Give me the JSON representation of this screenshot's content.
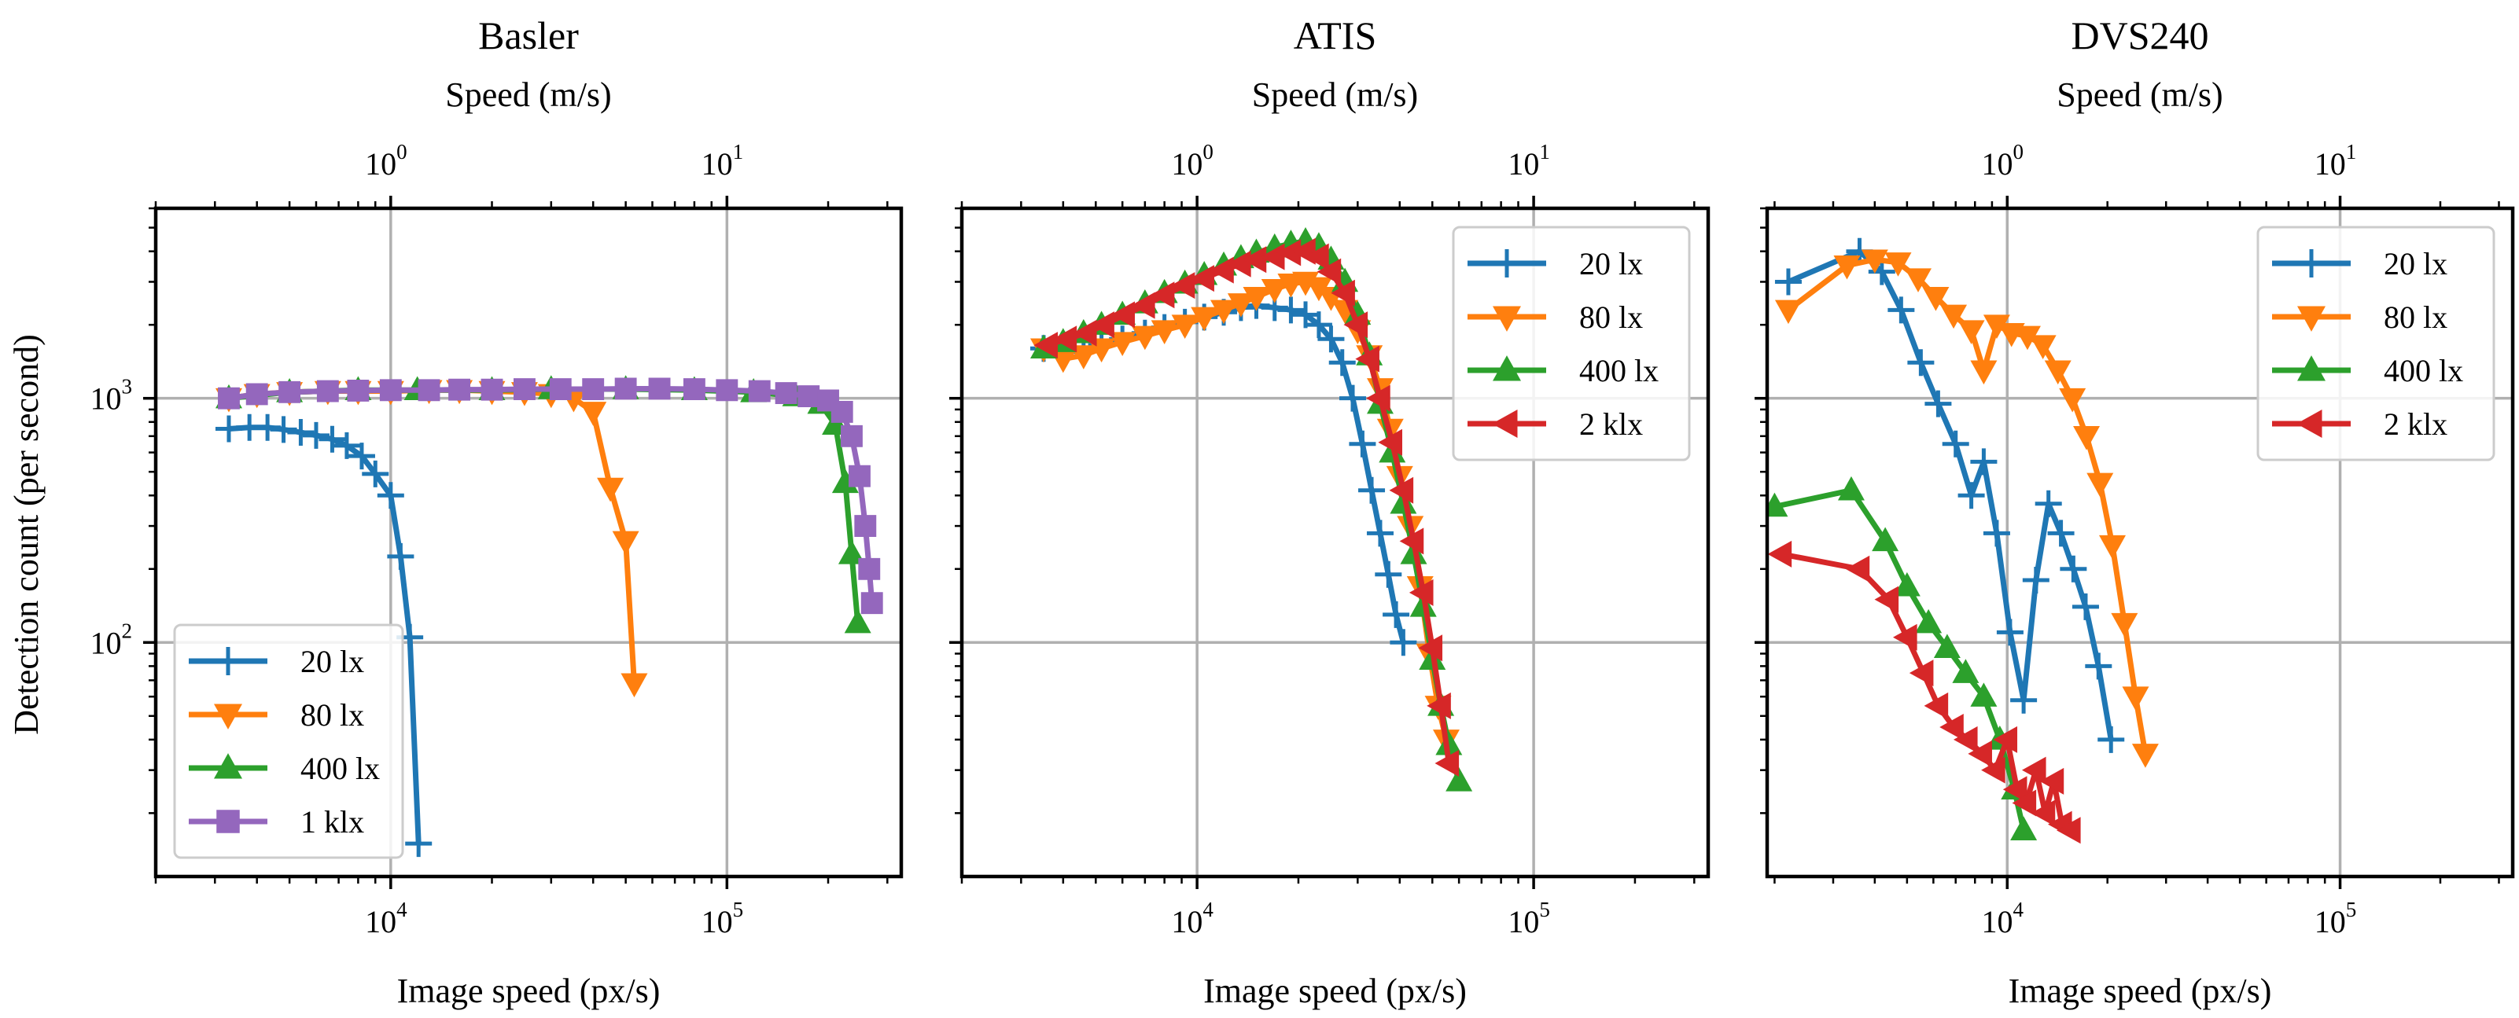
{
  "figure": {
    "ylabel": "Detection count (per second)"
  },
  "chart_data": [
    {
      "type": "line",
      "title": "Basler",
      "xlabel": "Image speed (px/s)",
      "x2label": "Speed (m/s)",
      "ylabel": "Detection count (per second)",
      "xscale": "log",
      "yscale": "log",
      "xlim": [
        2000,
        330000
      ],
      "ylim": [
        11,
        6000
      ],
      "x_ticks": [
        {
          "base": "10",
          "exp": "4",
          "value": 10000
        },
        {
          "base": "10",
          "exp": "5",
          "value": 100000
        }
      ],
      "y_ticks": [
        {
          "base": "10",
          "exp": "3",
          "value": 1000
        },
        {
          "base": "10",
          "exp": "2",
          "value": 100
        }
      ],
      "x2_ticks": [
        {
          "base": "10",
          "exp": "0",
          "value": 1
        },
        {
          "base": "10",
          "exp": "1",
          "value": 10
        }
      ],
      "grid": true,
      "legend_position": "lower-left",
      "series": [
        {
          "name": "20 lx",
          "color": "#1f77b4",
          "marker": "plus",
          "x": [
            3300,
            3800,
            4300,
            4800,
            5400,
            6000,
            6700,
            7400,
            8200,
            9000,
            10000,
            10700,
            11400,
            12100
          ],
          "y": [
            750,
            760,
            760,
            745,
            725,
            705,
            680,
            640,
            580,
            490,
            400,
            225,
            105,
            15
          ]
        },
        {
          "name": "80 lx",
          "color": "#ff7f0e",
          "marker": "triangle-down",
          "x": [
            3300,
            4000,
            5000,
            6500,
            8000,
            10000,
            13000,
            16000,
            20000,
            25000,
            30000,
            35000,
            40000,
            45000,
            50000,
            53000
          ],
          "y": [
            1000,
            1040,
            1060,
            1070,
            1070,
            1070,
            1080,
            1080,
            1070,
            1060,
            1040,
            1000,
            880,
            430,
            260,
            68
          ]
        },
        {
          "name": "400 lx",
          "color": "#2ca02c",
          "marker": "triangle-up",
          "x": [
            3300,
            5000,
            8000,
            12000,
            20000,
            30000,
            50000,
            80000,
            120000,
            160000,
            190000,
            210000,
            225000,
            235000,
            245000
          ],
          "y": [
            1000,
            1060,
            1080,
            1080,
            1080,
            1090,
            1090,
            1080,
            1060,
            1020,
            950,
            780,
            450,
            230,
            120
          ]
        },
        {
          "name": "1 klx",
          "color": "#9467bd",
          "marker": "square",
          "x": [
            3300,
            4000,
            5000,
            6500,
            8000,
            10000,
            13000,
            16000,
            20000,
            25000,
            32000,
            40000,
            50000,
            63000,
            80000,
            100000,
            125000,
            150000,
            175000,
            200000,
            220000,
            235000,
            248000,
            258000,
            265000,
            270000
          ],
          "y": [
            1000,
            1040,
            1060,
            1070,
            1075,
            1080,
            1080,
            1085,
            1085,
            1090,
            1090,
            1090,
            1095,
            1095,
            1090,
            1080,
            1070,
            1050,
            1020,
            980,
            880,
            700,
            480,
            300,
            200,
            145
          ]
        }
      ]
    },
    {
      "type": "line",
      "title": "ATIS",
      "xlabel": "Image speed (px/s)",
      "x2label": "Speed (m/s)",
      "xscale": "log",
      "yscale": "log",
      "xlim": [
        2000,
        330000
      ],
      "ylim": [
        11,
        6000
      ],
      "x_ticks": [
        {
          "base": "10",
          "exp": "4",
          "value": 10000
        },
        {
          "base": "10",
          "exp": "5",
          "value": 100000
        }
      ],
      "y_ticks": [
        {
          "base": "10",
          "exp": "3",
          "value": 1000
        },
        {
          "base": "10",
          "exp": "2",
          "value": 100
        }
      ],
      "x2_ticks": [
        {
          "base": "10",
          "exp": "0",
          "value": 1
        },
        {
          "base": "10",
          "exp": "1",
          "value": 10
        }
      ],
      "grid": true,
      "legend_position": "upper-right",
      "series": [
        {
          "name": "20 lx",
          "color": "#1f77b4",
          "marker": "plus",
          "x": [
            3500,
            4000,
            4600,
            5200,
            6000,
            7000,
            8000,
            9200,
            10500,
            12000,
            13500,
            15000,
            17000,
            19000,
            21000,
            23000,
            25000,
            27000,
            29000,
            31000,
            33000,
            35000,
            37000,
            39000,
            41000
          ],
          "y": [
            1600,
            1550,
            1580,
            1650,
            1750,
            1850,
            1950,
            2050,
            2150,
            2250,
            2350,
            2400,
            2350,
            2300,
            2200,
            2000,
            1750,
            1400,
            1000,
            650,
            420,
            280,
            190,
            130,
            100
          ]
        },
        {
          "name": "80 lx",
          "color": "#ff7f0e",
          "marker": "triangle-down",
          "x": [
            3500,
            4000,
            4600,
            5200,
            6000,
            7000,
            8000,
            9200,
            10500,
            12000,
            13500,
            15000,
            17000,
            19000,
            21000,
            23000,
            25000,
            27500,
            30000,
            32500,
            35000,
            37500,
            40000,
            43000,
            46000,
            49000,
            52000,
            55000
          ],
          "y": [
            1600,
            1450,
            1500,
            1600,
            1700,
            1800,
            1900,
            2000,
            2150,
            2300,
            2450,
            2600,
            2800,
            2950,
            3000,
            2850,
            2600,
            2300,
            1900,
            1500,
            1100,
            750,
            480,
            300,
            170,
            90,
            55,
            40
          ]
        },
        {
          "name": "400 lx",
          "color": "#2ca02c",
          "marker": "triangle-up",
          "x": [
            3500,
            4000,
            4600,
            5200,
            6000,
            7000,
            8000,
            9200,
            10500,
            12000,
            13500,
            15000,
            17000,
            19000,
            21000,
            23000,
            25000,
            27500,
            30000,
            32500,
            35000,
            38000,
            41000,
            44000,
            47000,
            50000,
            53000,
            56000,
            60000
          ],
          "y": [
            1600,
            1700,
            1850,
            2000,
            2200,
            2450,
            2700,
            2950,
            3200,
            3500,
            3750,
            3950,
            4150,
            4300,
            4400,
            4200,
            3700,
            3000,
            2200,
            1500,
            950,
            600,
            370,
            230,
            140,
            85,
            55,
            38,
            27
          ]
        },
        {
          "name": "2 klx",
          "color": "#d62728",
          "marker": "triangle-left",
          "x": [
            3600,
            4100,
            4700,
            5300,
            6100,
            7000,
            8000,
            9200,
            10500,
            12000,
            13500,
            15000,
            17000,
            19000,
            21000,
            23000,
            25000,
            27500,
            30000,
            32500,
            35000,
            38000,
            41000,
            44000,
            47000,
            50000,
            53000,
            56000
          ],
          "y": [
            1650,
            1750,
            1850,
            2000,
            2200,
            2400,
            2650,
            2900,
            3100,
            3350,
            3550,
            3700,
            3800,
            3950,
            4000,
            3800,
            3300,
            2700,
            2000,
            1450,
            1000,
            660,
            420,
            260,
            160,
            95,
            55,
            32
          ]
        }
      ]
    },
    {
      "type": "line",
      "title": "DVS240",
      "xlabel": "Image speed (px/s)",
      "x2label": "Speed (m/s)",
      "xscale": "log",
      "yscale": "log",
      "xlim": [
        1900,
        330000
      ],
      "ylim": [
        11,
        6000
      ],
      "x_ticks": [
        {
          "base": "10",
          "exp": "4",
          "value": 10000
        },
        {
          "base": "10",
          "exp": "5",
          "value": 100000
        }
      ],
      "y_ticks": [
        {
          "base": "10",
          "exp": "3",
          "value": 1000
        },
        {
          "base": "10",
          "exp": "2",
          "value": 100
        }
      ],
      "x2_ticks": [
        {
          "base": "10",
          "exp": "0",
          "value": 1
        },
        {
          "base": "10",
          "exp": "1",
          "value": 10
        }
      ],
      "grid": true,
      "legend_position": "upper-right",
      "series": [
        {
          "name": "20 lx",
          "color": "#1f77b4",
          "marker": "plus",
          "x": [
            2200,
            3600,
            4200,
            4800,
            5500,
            6200,
            7000,
            7800,
            8500,
            9300,
            10200,
            11200,
            12200,
            13300,
            14500,
            15800,
            17200,
            18800,
            20500
          ],
          "y": [
            3000,
            4000,
            3300,
            2300,
            1400,
            950,
            650,
            400,
            550,
            280,
            110,
            58,
            180,
            370,
            280,
            200,
            140,
            80,
            40
          ]
        },
        {
          "name": "80 lx",
          "color": "#ff7f0e",
          "marker": "triangle-down",
          "x": [
            2200,
            3300,
            4000,
            4700,
            5400,
            6100,
            6900,
            7800,
            8500,
            9300,
            10300,
            11500,
            12800,
            14200,
            15700,
            17300,
            19000,
            20700,
            22500,
            24300,
            26000
          ],
          "y": [
            2300,
            3500,
            3700,
            3600,
            3100,
            2600,
            2200,
            1900,
            1300,
            2000,
            1850,
            1800,
            1650,
            1300,
            1000,
            700,
            450,
            250,
            120,
            60,
            35
          ]
        },
        {
          "name": "400 lx",
          "color": "#2ca02c",
          "marker": "triangle-up",
          "x": [
            2000,
            3400,
            4300,
            5000,
            5800,
            6600,
            7500,
            8500,
            9500,
            10500,
            11200
          ],
          "y": [
            360,
            420,
            260,
            170,
            120,
            95,
            75,
            60,
            40,
            25,
            17
          ]
        },
        {
          "name": "2 klx",
          "color": "#d62728",
          "marker": "triangle-left",
          "x": [
            2100,
            3600,
            4400,
            5000,
            5600,
            6200,
            6900,
            7600,
            8400,
            9200,
            10000,
            10700,
            11400,
            12200,
            13000,
            13800,
            14600,
            15500
          ],
          "y": [
            230,
            200,
            150,
            105,
            75,
            55,
            45,
            40,
            35,
            30,
            40,
            25,
            22,
            30,
            20,
            27,
            18,
            17
          ]
        }
      ]
    }
  ]
}
